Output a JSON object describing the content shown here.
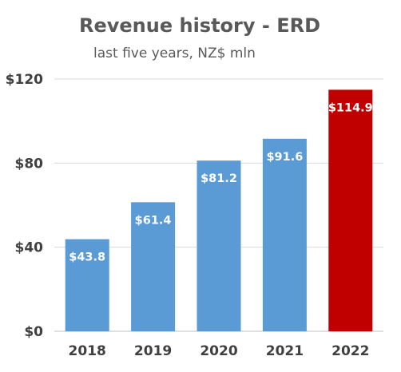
{
  "chart_data": {
    "type": "bar",
    "title": "Revenue history - ERD",
    "subtitle": "last five years, NZ$ mln",
    "categories": [
      "2018",
      "2019",
      "2020",
      "2021",
      "2022"
    ],
    "values": [
      43.8,
      61.4,
      81.2,
      91.6,
      114.9
    ],
    "data_labels": [
      "$43.8",
      "$61.4",
      "$81.2",
      "$91.6",
      "$114.9"
    ],
    "ylim": [
      0,
      120
    ],
    "yticks": [
      0,
      40,
      80,
      120
    ],
    "ytick_labels": [
      "$0",
      "$40",
      "$80",
      "$120"
    ],
    "grid": true,
    "legend": "none",
    "colors": {
      "default_bar": "#5b9bd5",
      "highlight_bar": "#c00000",
      "highlight_index": 4
    }
  }
}
